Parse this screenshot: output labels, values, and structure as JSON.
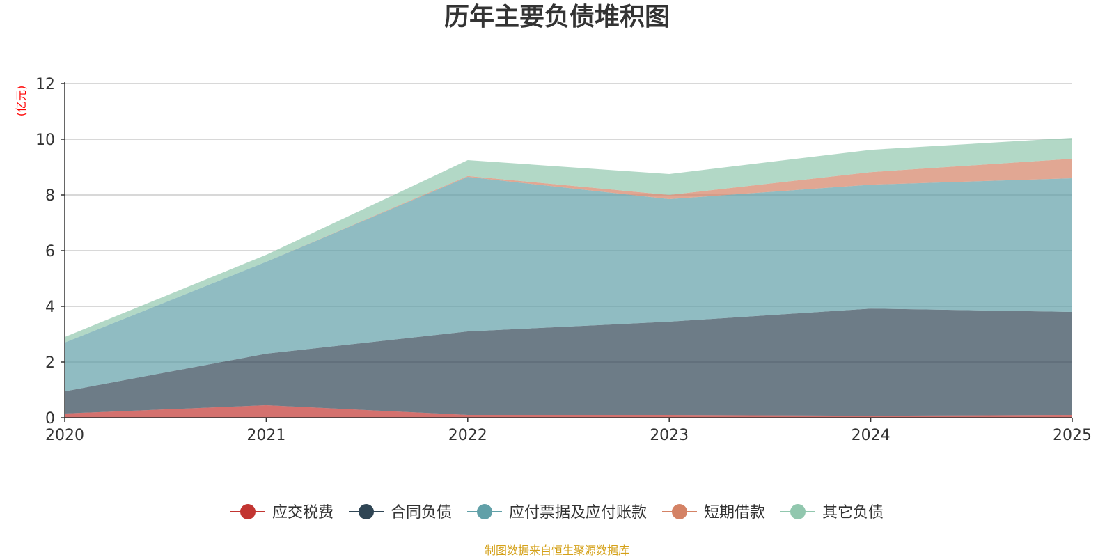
{
  "chart_data": {
    "type": "area",
    "stacked": true,
    "title": "历年主要负债堆积图",
    "unit_label": "(亿元)",
    "x": [
      "2020",
      "2021",
      "2022",
      "2023",
      "2024",
      "2025"
    ],
    "ylim": [
      0,
      12
    ],
    "yticks": [
      "0",
      "2",
      "4",
      "6",
      "8",
      "10",
      "12"
    ],
    "grid": true,
    "legend_position": "bottom-center",
    "series": [
      {
        "name": "应交税费",
        "color": "#c23531",
        "values": [
          0.15,
          0.45,
          0.1,
          0.1,
          0.07,
          0.1
        ]
      },
      {
        "name": "合同负债",
        "color": "#2f4554",
        "values": [
          0.8,
          1.85,
          3.0,
          3.35,
          3.85,
          3.7
        ]
      },
      {
        "name": "应付票据及应付账款",
        "color": "#61a0a8",
        "values": [
          1.75,
          3.3,
          5.55,
          4.4,
          4.45,
          4.8
        ]
      },
      {
        "name": "短期借款",
        "color": "#d48265",
        "values": [
          0.0,
          0.0,
          0.03,
          0.15,
          0.45,
          0.7
        ]
      },
      {
        "name": "其它负债",
        "color": "#91c7ae",
        "values": [
          0.2,
          0.25,
          0.57,
          0.75,
          0.8,
          0.75
        ]
      }
    ],
    "source_note": "制图数据来自恒生聚源数据库"
  }
}
